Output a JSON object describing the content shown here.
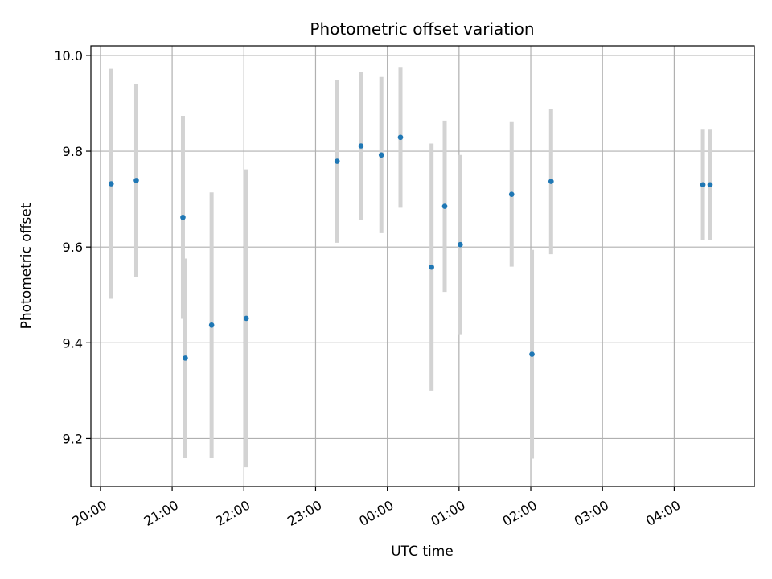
{
  "chart_data": {
    "type": "scatter",
    "title": "Photometric offset variation",
    "xlabel": "UTC time",
    "ylabel": "Photometric offset",
    "x_tick_labels": [
      "20:00",
      "21:00",
      "22:00",
      "23:00",
      "00:00",
      "01:00",
      "02:00",
      "03:00",
      "04:00"
    ],
    "x_tick_hours": [
      20,
      21,
      22,
      23,
      24,
      25,
      26,
      27,
      28
    ],
    "y_ticks": [
      9.2,
      9.4,
      9.6,
      9.8,
      10.0
    ],
    "y_tick_labels": [
      "9.2",
      "9.4",
      "9.6",
      "9.8",
      "10.0"
    ],
    "xlim": [
      "19:52",
      "05:07"
    ],
    "ylim": [
      9.1,
      10.02
    ],
    "grid": true,
    "colors": {
      "point": "#1f77b4",
      "errorbar": "#d3d3d3",
      "grid": "#b0b0b0",
      "axes": "#000000"
    },
    "points": [
      {
        "time": "20:09",
        "y": 9.732,
        "err": 0.24
      },
      {
        "time": "20:30",
        "y": 9.739,
        "err": 0.202
      },
      {
        "time": "21:09",
        "y": 9.662,
        "err": 0.212
      },
      {
        "time": "21:11",
        "y": 9.368,
        "err": 0.208
      },
      {
        "time": "21:33",
        "y": 9.437,
        "err": 0.277
      },
      {
        "time": "22:02",
        "y": 9.451,
        "err": 0.311
      },
      {
        "time": "23:18",
        "y": 9.779,
        "err": 0.17
      },
      {
        "time": "23:38",
        "y": 9.811,
        "err": 0.154
      },
      {
        "time": "23:55",
        "y": 9.792,
        "err": 0.163
      },
      {
        "time": "00:11",
        "y": 9.829,
        "err": 0.147
      },
      {
        "time": "00:37",
        "y": 9.558,
        "err": 0.258
      },
      {
        "time": "00:48",
        "y": 9.685,
        "err": 0.179
      },
      {
        "time": "01:01",
        "y": 9.605,
        "err": 0.187
      },
      {
        "time": "01:44",
        "y": 9.71,
        "err": 0.151
      },
      {
        "time": "02:01",
        "y": 9.376,
        "err": 0.218
      },
      {
        "time": "02:17",
        "y": 9.737,
        "err": 0.152
      },
      {
        "time": "04:24",
        "y": 9.73,
        "err": 0.115
      },
      {
        "time": "04:30",
        "y": 9.73,
        "err": 0.115
      }
    ]
  }
}
